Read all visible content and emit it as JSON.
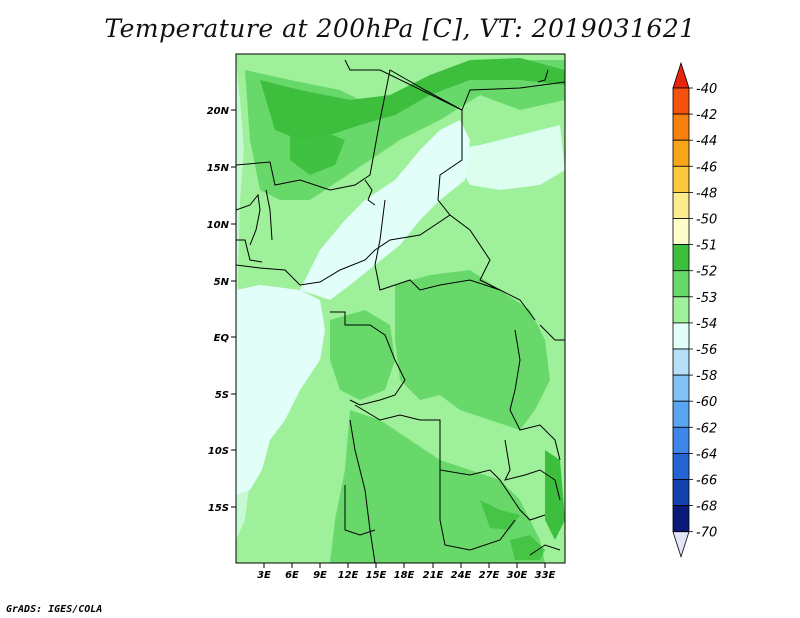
{
  "title": "Temperature at 200hPa [C], VT: 2019031621",
  "credit": "GrADS: IGES/COLA",
  "map": {
    "lat_labels": [
      "20N",
      "15N",
      "10N",
      "5N",
      "EQ",
      "5S",
      "10S",
      "15S"
    ],
    "lon_labels": [
      "3E",
      "6E",
      "9E",
      "12E",
      "15E",
      "18E",
      "21E",
      "24E",
      "27E",
      "30E",
      "33E"
    ],
    "colors": {
      "frame": "#000000",
      "border": "#000000"
    }
  },
  "colorbar": {
    "levels": [
      "-40",
      "-42",
      "-44",
      "-46",
      "-48",
      "-50",
      "-51",
      "-52",
      "-53",
      "-54",
      "-56",
      "-58",
      "-60",
      "-62",
      "-64",
      "-66",
      "-68",
      "-70"
    ],
    "colors": [
      "#e8240c",
      "#f2520d",
      "#f7810f",
      "#f8a51a",
      "#fac93f",
      "#fcec8e",
      "#fefcc9",
      "#3dbf3d",
      "#68d86a",
      "#9ef09a",
      "#e1fff8",
      "#b6e0f8",
      "#82c2f4",
      "#5aa5f0",
      "#3e86e8",
      "#2465d6",
      "#1443b0",
      "#0a1a7a",
      "#090848",
      "#e4e4fa"
    ]
  }
}
